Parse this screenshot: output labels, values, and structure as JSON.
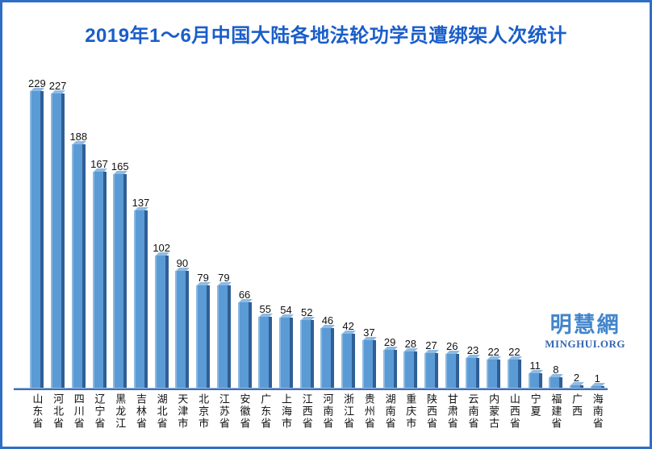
{
  "title": "2019年1～6月中国大陆各地法轮功学员遭绑架人次统计",
  "watermark": {
    "cn": "明慧網",
    "en": "MINGHUI.ORG"
  },
  "colors": {
    "border": "#2e6fc4",
    "title": "#1a5ec9",
    "bar_face": "#5b9bd5",
    "bar_side": "#2f5f96",
    "bar_top": "#8fbae2",
    "axis_dark": "#3f6db8",
    "axis_light": "#9cbce0",
    "label": "#111111",
    "watermark_cn": "#4285cc",
    "watermark_en": "#3565b0"
  },
  "chart_data": {
    "type": "bar",
    "title": "2019年1～6月中国大陆各地法轮功学员遭绑架人次统计",
    "categories": [
      "山东省",
      "河北省",
      "四川省",
      "辽宁省",
      "黑龙江",
      "吉林省",
      "湖北省",
      "天津市",
      "北京市",
      "江苏省",
      "安徽省",
      "广东省",
      "上海市",
      "江西省",
      "河南省",
      "浙江省",
      "贵州省",
      "湖南省",
      "重庆市",
      "陕西省",
      "甘肃省",
      "云南省",
      "内蒙古",
      "山西省",
      "宁夏",
      "福建省",
      "广西",
      "海南省"
    ],
    "values": [
      229,
      227,
      188,
      167,
      165,
      137,
      102,
      90,
      79,
      79,
      66,
      55,
      54,
      52,
      46,
      42,
      37,
      29,
      28,
      27,
      26,
      23,
      22,
      22,
      11,
      8,
      2,
      1
    ],
    "xlabel": "",
    "ylabel": "",
    "ylim": [
      0,
      240
    ],
    "grid": false,
    "legend": null,
    "value_labels": true,
    "bar_color": "#5b9bd5"
  }
}
